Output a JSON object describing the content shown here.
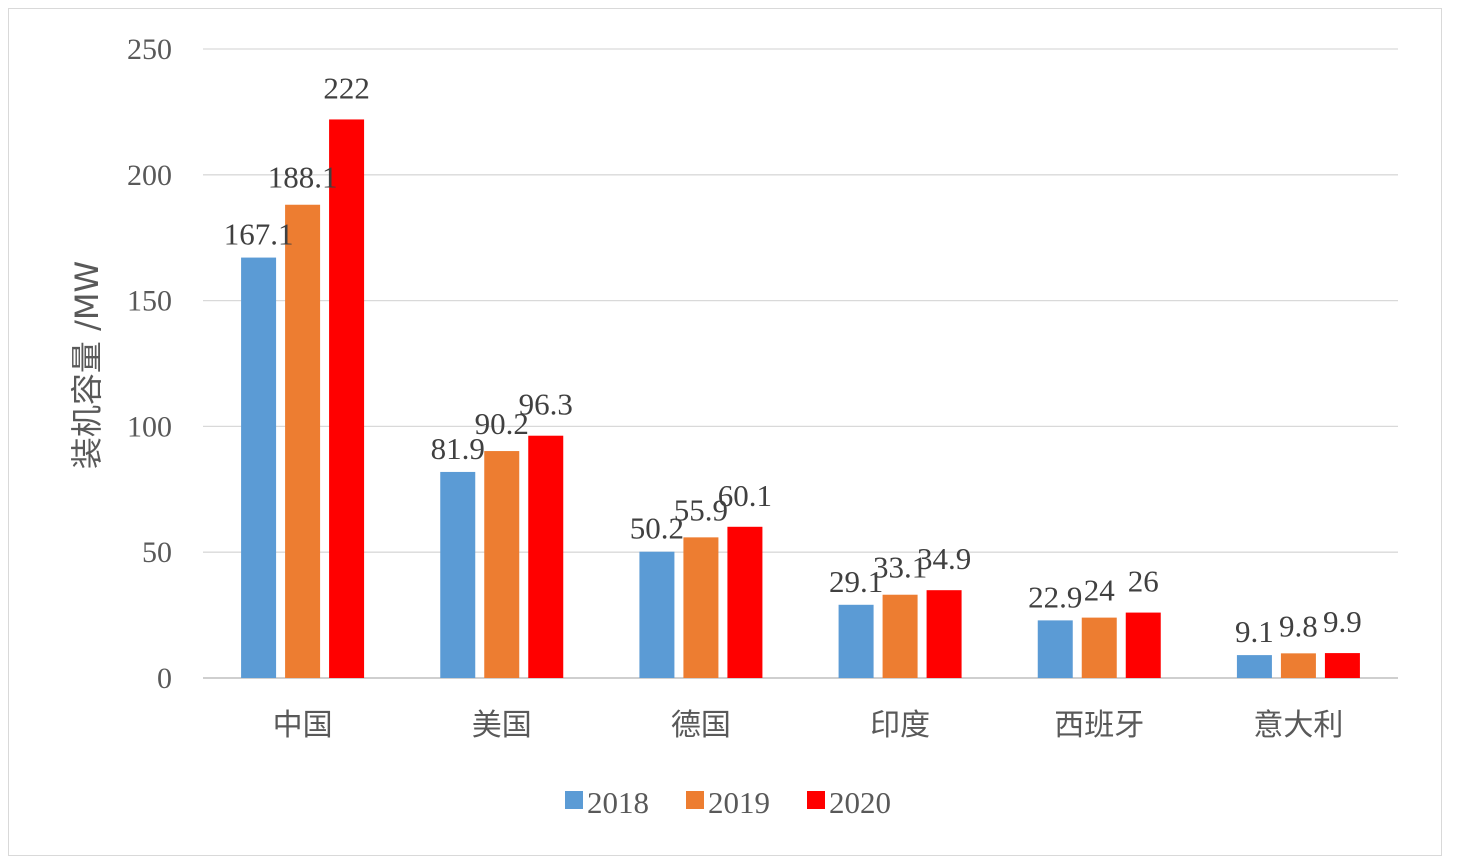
{
  "chart_data": {
    "type": "bar",
    "ylabel": "装机容量 /MW",
    "ylim": [
      0,
      250
    ],
    "yticks": [
      0,
      50,
      100,
      150,
      200,
      250
    ],
    "grid": true,
    "legend_position": "bottom",
    "categories": [
      "中国",
      "美国",
      "德国",
      "印度",
      "西班牙",
      "意大利"
    ],
    "series": [
      {
        "name": "2018",
        "color": "#5B9BD5",
        "values": [
          167.1,
          81.9,
          50.2,
          29.1,
          22.9,
          9.1
        ]
      },
      {
        "name": "2019",
        "color": "#ED7D31",
        "values": [
          188.1,
          90.2,
          55.9,
          33.1,
          24,
          9.8
        ]
      },
      {
        "name": "2020",
        "color": "#FF0000",
        "values": [
          222,
          96.3,
          60.1,
          34.9,
          26,
          9.9
        ]
      }
    ]
  }
}
